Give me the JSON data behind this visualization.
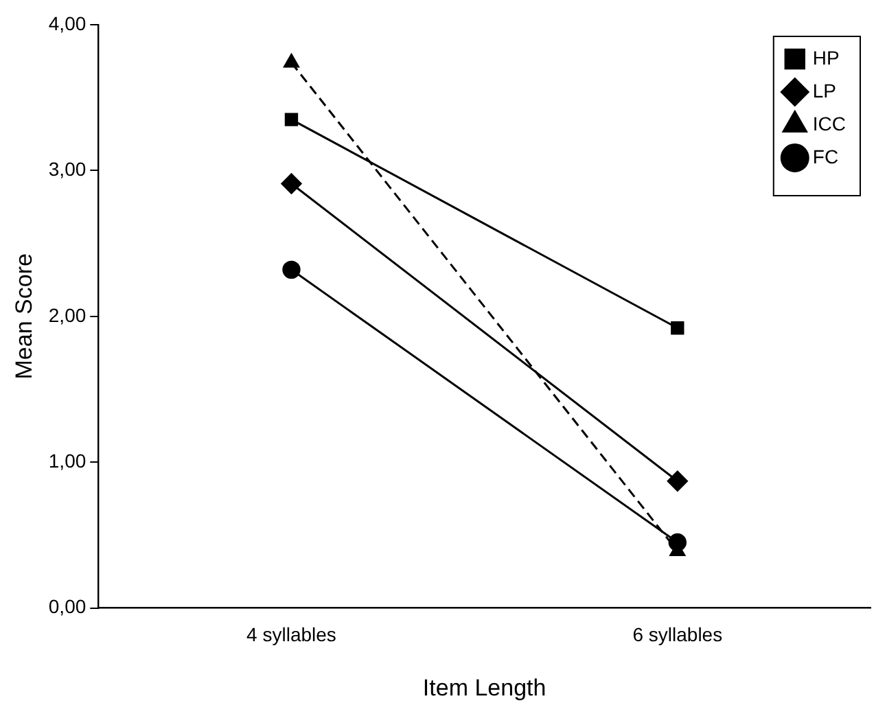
{
  "chart_data": {
    "type": "line",
    "xlabel": "Item Length",
    "ylabel": "Mean Score",
    "categories": [
      "4 syllables",
      "6 syllables"
    ],
    "ylim": [
      0,
      4
    ],
    "yticks": [
      {
        "value": 0,
        "label": "0,00"
      },
      {
        "value": 1,
        "label": "1,00"
      },
      {
        "value": 2,
        "label": "2,00"
      },
      {
        "value": 3,
        "label": "3,00"
      },
      {
        "value": 4,
        "label": "4,00"
      }
    ],
    "grid": false,
    "legend": "top right",
    "series": [
      {
        "name": "HP",
        "color": "#000000",
        "values": [
          3.35,
          1.92
        ],
        "marker": "square",
        "line_style": "solid"
      },
      {
        "name": "LP",
        "color": "#000000",
        "values": [
          2.91,
          0.87
        ],
        "marker": "diamond",
        "line_style": "solid"
      },
      {
        "name": "ICC",
        "color": "#000000",
        "values": [
          3.74,
          0.39
        ],
        "marker": "triangle",
        "line_style": "dashed"
      },
      {
        "name": "FC",
        "color": "#000000",
        "values": [
          2.32,
          0.45
        ],
        "marker": "circle",
        "line_style": "solid"
      }
    ]
  }
}
